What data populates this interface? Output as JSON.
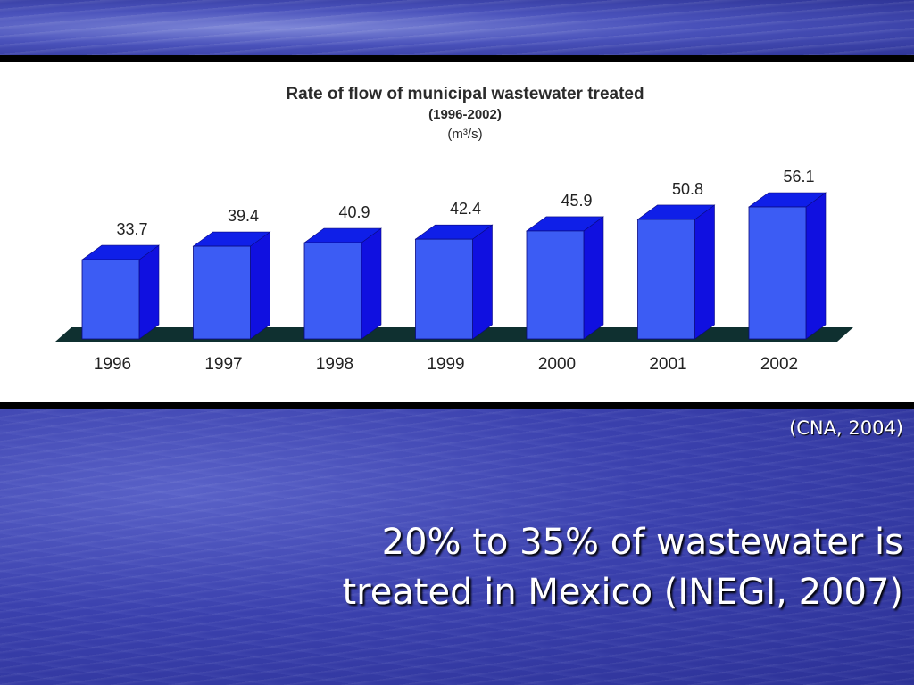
{
  "chart_data": {
    "type": "bar",
    "title": "Rate of flow of municipal wastewater treated",
    "subtitle": "(1996-2002)",
    "unit": "(m³/s)",
    "categories": [
      "1996",
      "1997",
      "1998",
      "1999",
      "2000",
      "2001",
      "2002"
    ],
    "values": [
      33.7,
      39.4,
      40.9,
      42.4,
      45.9,
      50.8,
      56.1
    ],
    "data_labels": [
      "33.7",
      "39.4",
      "40.9",
      "42.4",
      "45.9",
      "50.8",
      "56.1"
    ],
    "ylim": [
      0,
      56.1
    ],
    "grid": false,
    "colors": {
      "bar_front": "#3c5cf4",
      "bar_side": "#1010e0",
      "bar_top": "#0f1fe8",
      "floor": "#0f3030"
    }
  },
  "slide": {
    "source": "(CNA, 2004)",
    "headline_line1": "20% to 35% of wastewater is",
    "headline_line2": "treated in Mexico (INEGI, 2007)"
  }
}
